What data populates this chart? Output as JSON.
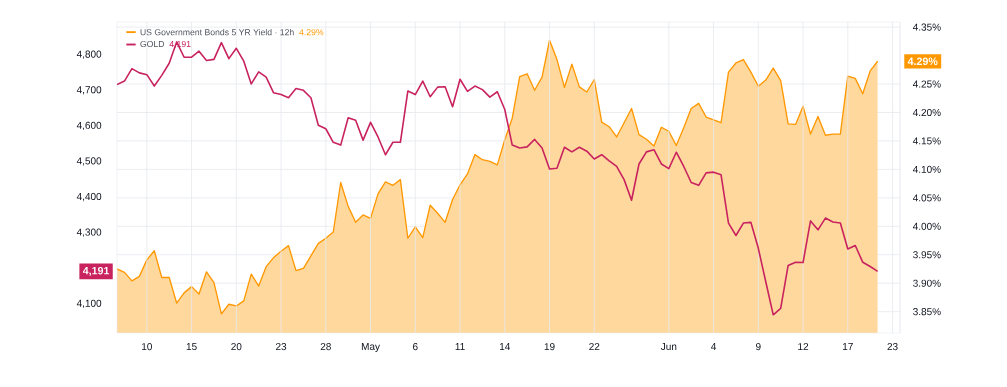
{
  "chart_data": {
    "type": "line",
    "categories": [
      null,
      null,
      null,
      null,
      "10",
      null,
      null,
      null,
      null,
      null,
      "15",
      null,
      null,
      null,
      null,
      null,
      "20",
      null,
      null,
      null,
      null,
      null,
      "23",
      null,
      null,
      null,
      null,
      null,
      "28",
      null,
      null,
      null,
      null,
      null,
      "May",
      null,
      null,
      null,
      null,
      null,
      "6",
      null,
      null,
      null,
      null,
      null,
      "11",
      null,
      null,
      null,
      null,
      null,
      "14",
      null,
      null,
      null,
      null,
      null,
      "19",
      null,
      null,
      null,
      null,
      null,
      "22",
      null,
      null,
      null,
      null,
      null,
      null,
      null,
      null,
      null,
      "Jun",
      null,
      null,
      null,
      null,
      null,
      "4",
      null,
      null,
      null,
      null,
      null,
      "9",
      null,
      null,
      null,
      null,
      null,
      "12",
      null,
      null,
      null,
      null,
      null,
      "17",
      null,
      null,
      null,
      null,
      null,
      "23"
    ],
    "series": [
      {
        "name": "US Government Bonds 5 YR Yield · 12h",
        "type": "area",
        "axis": "y2",
        "color": "#ff9800",
        "values": [
          3.925,
          3.919,
          3.904,
          3.912,
          3.941,
          3.957,
          3.91,
          3.91,
          3.865,
          3.883,
          3.894,
          3.881,
          3.92,
          3.901,
          3.846,
          3.863,
          3.86,
          3.869,
          3.916,
          3.895,
          3.929,
          3.945,
          3.956,
          3.966,
          3.922,
          3.926,
          3.948,
          3.97,
          3.979,
          3.99,
          4.077,
          4.035,
          4.007,
          4.02,
          4.014,
          4.057,
          4.078,
          4.072,
          4.082,
          3.979,
          3.999,
          3.98,
          4.037,
          4.023,
          4.007,
          4.047,
          4.073,
          4.092,
          4.126,
          4.117,
          4.114,
          4.108,
          4.152,
          4.19,
          4.263,
          4.268,
          4.239,
          4.262,
          4.327,
          4.293,
          4.244,
          4.285,
          4.245,
          4.236,
          4.258,
          4.183,
          4.175,
          4.157,
          4.182,
          4.207,
          4.161,
          4.153,
          4.141,
          4.174,
          4.167,
          4.142,
          4.173,
          4.207,
          4.216,
          4.192,
          4.187,
          4.182,
          4.271,
          4.287,
          4.293,
          4.271,
          4.246,
          4.257,
          4.278,
          4.256,
          4.18,
          4.179,
          4.211,
          4.162,
          4.193,
          4.16,
          4.162,
          4.162,
          4.264,
          4.26,
          4.233,
          4.273,
          4.29,
          null,
          null
        ]
      },
      {
        "name": "GOLD",
        "axis": "y",
        "color": "#c8235e",
        "values": [
          4716,
          4726,
          4761,
          4749,
          4744,
          4712,
          4742,
          4776,
          4836,
          4793,
          4793,
          4810,
          4784,
          4787,
          4834,
          4789,
          4818,
          4782,
          4718,
          4752,
          4737,
          4693,
          4688,
          4679,
          4705,
          4700,
          4679,
          4602,
          4592,
          4554,
          4546,
          4623,
          4616,
          4560,
          4610,
          4569,
          4519,
          4554,
          4554,
          4698,
          4688,
          4726,
          4682,
          4709,
          4710,
          4654,
          4731,
          4697,
          4712,
          4702,
          4681,
          4696,
          4646,
          4546,
          4538,
          4541,
          4562,
          4538,
          4479,
          4481,
          4540,
          4527,
          4540,
          4529,
          4507,
          4519,
          4502,
          4486,
          4449,
          4391,
          4493,
          4527,
          4533,
          4493,
          4480,
          4526,
          4486,
          4441,
          4433,
          4468,
          4470,
          4463,
          4327,
          4292,
          4327,
          4329,
          4256,
          4162,
          4069,
          4087,
          4208,
          4217,
          4216,
          4333,
          4308,
          4341,
          4330,
          4327,
          4254,
          4264,
          4217,
          4205,
          4191,
          null,
          null
        ]
      }
    ],
    "ylim": [
      4018,
      4892
    ],
    "yticks": [
      {
        "value": 4100,
        "label": "4,100"
      },
      {
        "value": 4300,
        "label": "4,300"
      },
      {
        "value": 4400,
        "label": "4,400"
      },
      {
        "value": 4500,
        "label": "4,500"
      },
      {
        "value": 4600,
        "label": "4,600"
      },
      {
        "value": 4700,
        "label": "4,700"
      },
      {
        "value": 4800,
        "label": "4,800"
      }
    ],
    "y2lim": [
      3.8125,
      4.359
    ],
    "y2ticks": [
      {
        "value": 3.85,
        "label": "3.85%"
      },
      {
        "value": 3.9,
        "label": "3.90%"
      },
      {
        "value": 3.95,
        "label": "3.95%"
      },
      {
        "value": 4.0,
        "label": "4.00%"
      },
      {
        "value": 4.05,
        "label": "4.05%"
      },
      {
        "value": 4.1,
        "label": "4.10%"
      },
      {
        "value": 4.15,
        "label": "4.15%"
      },
      {
        "value": 4.2,
        "label": "4.20%"
      },
      {
        "value": 4.25,
        "label": "4.25%"
      },
      {
        "value": 4.35,
        "label": "4.35%"
      }
    ],
    "annotations": [
      "4.29%",
      "4,191"
    ],
    "grid": true,
    "legend": "top left"
  }
}
